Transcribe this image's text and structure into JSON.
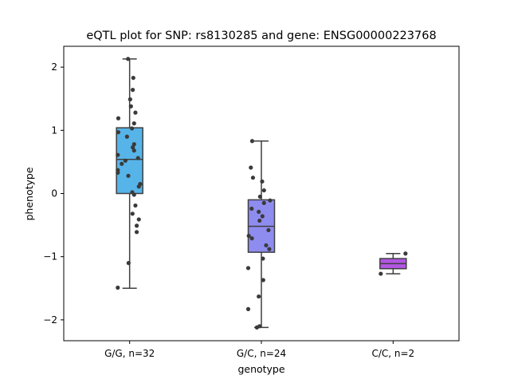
{
  "chart_data": {
    "type": "box",
    "title": "eQTL plot for SNP: rs8130285 and gene: ENSG00000223768",
    "xlabel": "genotype",
    "ylabel": "phenotype",
    "ylim": [
      -2.33,
      2.33
    ],
    "yticks": [
      2,
      1,
      0,
      -1,
      -2
    ],
    "ytick_labels": [
      "2",
      "1",
      "0",
      "−1",
      "−2"
    ],
    "grid": false,
    "legend": "none",
    "categories": [
      "G/G, n=32",
      "G/C, n=24",
      "C/C, n=2"
    ],
    "boxes": [
      {
        "category": "G/G, n=32",
        "color": "#56b4e9",
        "whisker_low": -1.5,
        "q1": 0.0,
        "median": 0.54,
        "q3": 1.04,
        "whisker_high": 2.13,
        "points": [
          {
            "x": -0.06,
            "y": 2.13
          },
          {
            "x": 0.14,
            "y": 1.83
          },
          {
            "x": 0.12,
            "y": 1.64
          },
          {
            "x": 0.02,
            "y": 1.49
          },
          {
            "x": 0.05,
            "y": 1.38
          },
          {
            "x": 0.22,
            "y": 1.28
          },
          {
            "x": -0.43,
            "y": 1.19
          },
          {
            "x": 0.17,
            "y": 1.11
          },
          {
            "x": 0.09,
            "y": 1.03
          },
          {
            "x": -0.43,
            "y": 0.97
          },
          {
            "x": -0.1,
            "y": 0.9
          },
          {
            "x": 0.17,
            "y": 0.78
          },
          {
            "x": 0.12,
            "y": 0.73
          },
          {
            "x": 0.17,
            "y": 0.68
          },
          {
            "x": -0.45,
            "y": 0.61
          },
          {
            "x": 0.32,
            "y": 0.56
          },
          {
            "x": -0.16,
            "y": 0.52
          },
          {
            "x": -0.3,
            "y": 0.47
          },
          {
            "x": -0.45,
            "y": 0.37
          },
          {
            "x": -0.45,
            "y": 0.33
          },
          {
            "x": -0.05,
            "y": 0.28
          },
          {
            "x": 0.4,
            "y": 0.15
          },
          {
            "x": 0.35,
            "y": 0.11
          },
          {
            "x": 0.1,
            "y": 0.02
          },
          {
            "x": 0.17,
            "y": -0.02
          },
          {
            "x": 0.22,
            "y": -0.19
          },
          {
            "x": 0.11,
            "y": -0.32
          },
          {
            "x": 0.35,
            "y": -0.41
          },
          {
            "x": 0.27,
            "y": -0.51
          },
          {
            "x": 0.27,
            "y": -0.61
          },
          {
            "x": -0.04,
            "y": -1.1
          },
          {
            "x": -0.45,
            "y": -1.49
          }
        ]
      },
      {
        "category": "G/C, n=24",
        "color": "#8f8cf0",
        "whisker_low": -2.12,
        "q1": -0.93,
        "median": -0.52,
        "q3": -0.1,
        "whisker_high": 0.83,
        "points": [
          {
            "x": -0.35,
            "y": 0.83
          },
          {
            "x": -0.4,
            "y": 0.41
          },
          {
            "x": -0.32,
            "y": 0.25
          },
          {
            "x": 0.03,
            "y": 0.19
          },
          {
            "x": 0.1,
            "y": 0.05
          },
          {
            "x": -0.05,
            "y": -0.05
          },
          {
            "x": 0.33,
            "y": -0.11
          },
          {
            "x": 0.1,
            "y": -0.15
          },
          {
            "x": -0.37,
            "y": -0.24
          },
          {
            "x": -0.1,
            "y": -0.29
          },
          {
            "x": 0.04,
            "y": -0.36
          },
          {
            "x": -0.07,
            "y": -0.43
          },
          {
            "x": 0.27,
            "y": -0.58
          },
          {
            "x": -0.48,
            "y": -0.67
          },
          {
            "x": -0.36,
            "y": -0.71
          },
          {
            "x": 0.18,
            "y": -0.82
          },
          {
            "x": 0.3,
            "y": -0.88
          },
          {
            "x": 0.06,
            "y": -1.03
          },
          {
            "x": -0.5,
            "y": -1.18
          },
          {
            "x": 0.07,
            "y": -1.37
          },
          {
            "x": -0.1,
            "y": -1.63
          },
          {
            "x": -0.5,
            "y": -1.83
          },
          {
            "x": -0.17,
            "y": -2.12
          },
          {
            "x": -0.07,
            "y": -2.1
          }
        ]
      },
      {
        "category": "C/C, n=2",
        "color": "#b356e3",
        "whisker_low": -1.27,
        "q1": -1.19,
        "median": -1.11,
        "q3": -1.03,
        "whisker_high": -0.95,
        "points": [
          {
            "x": 0.47,
            "y": -0.95
          },
          {
            "x": -0.47,
            "y": -1.27
          }
        ]
      }
    ]
  }
}
